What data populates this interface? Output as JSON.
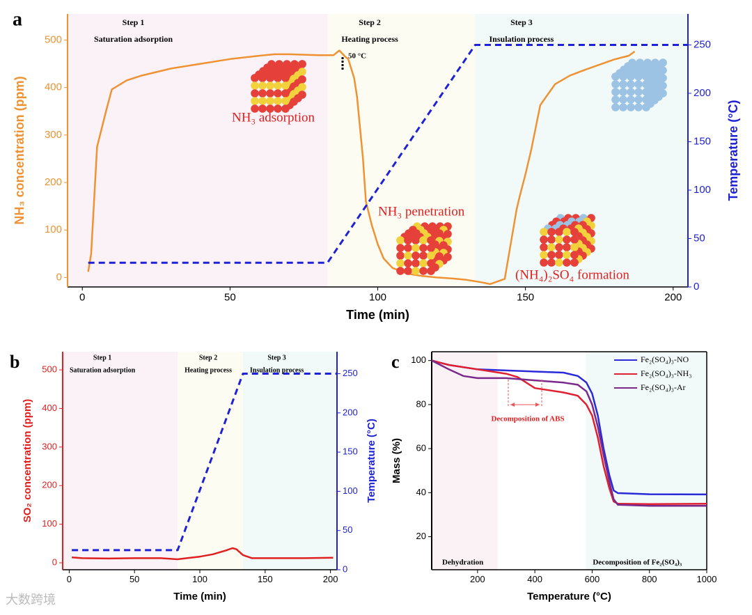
{
  "chart_data": [
    {
      "type": "line",
      "panel": "a",
      "xlabel": "Time (min)",
      "ylabel": "NH₃ concentration (ppm)",
      "y2label": "Temperature (°C)",
      "xlim": [
        -5,
        205
      ],
      "ylim": [
        -20,
        555
      ],
      "y2lim": [
        0,
        282
      ],
      "xticks": [
        0,
        50,
        100,
        150,
        200
      ],
      "yticks": [
        0,
        100,
        200,
        300,
        400,
        500
      ],
      "y2ticks": [
        0,
        50,
        100,
        150,
        200,
        250
      ],
      "ycolor": "#ee9233",
      "y2color": "#1f22d4",
      "regions": [
        {
          "label": "Step 1",
          "sublabel": "Saturation adsorption",
          "x": [
            -5,
            83
          ],
          "color": "#fbf2f8"
        },
        {
          "label": "Step 2",
          "sublabel": "Heating process",
          "x": [
            83,
            133
          ],
          "color": "#fdfcf3"
        },
        {
          "label": "Step 3",
          "sublabel": "Insulation process",
          "x": [
            133,
            205
          ],
          "color": "#f1faf9"
        }
      ],
      "annotations": [
        "50 °C",
        "NH₃ adsorption",
        "NH₃ penetration",
        "(NH₄)₂SO₄ formation"
      ],
      "series": [
        {
          "name": "NH3",
          "color": "#ee9233",
          "line_style": "solid",
          "x": [
            2,
            3,
            5,
            6,
            8,
            10,
            15,
            20,
            30,
            40,
            50,
            60,
            65,
            70,
            80,
            85,
            87,
            89,
            90,
            92,
            93,
            95,
            96,
            98,
            100,
            102,
            105,
            110,
            115,
            120,
            125,
            130,
            135,
            138,
            143,
            145,
            147,
            148,
            150,
            152,
            155,
            160,
            165,
            170,
            175,
            180,
            185,
            187
          ],
          "values": [
            12,
            50,
            275,
            300,
            350,
            396,
            415,
            425,
            440,
            450,
            460,
            467,
            470,
            470,
            468,
            468,
            478,
            465,
            460,
            420,
            380,
            250,
            160,
            110,
            70,
            40,
            20,
            8,
            3,
            0,
            -2,
            -5,
            -10,
            -14,
            -3,
            70,
            143,
            170,
            217,
            270,
            363,
            407,
            425,
            437,
            448,
            459,
            467,
            476
          ]
        },
        {
          "name": "Temperature",
          "color": "#1f22d4",
          "line_style": "dashed",
          "axis": "y2",
          "x": [
            2,
            83,
            133,
            205
          ],
          "values": [
            25,
            25,
            250,
            250
          ]
        }
      ]
    },
    {
      "type": "line",
      "panel": "b",
      "xlabel": "Time (min)",
      "ylabel": "SO₂ concentration (ppm)",
      "y2label": "Temperature (°C)",
      "xlim": [
        -5,
        205
      ],
      "ylim": [
        -18,
        547
      ],
      "y2lim": [
        0,
        278
      ],
      "xticks": [
        0,
        50,
        100,
        150,
        200
      ],
      "yticks": [
        0,
        100,
        200,
        300,
        400,
        500
      ],
      "y2ticks": [
        0,
        50,
        100,
        150,
        200,
        250
      ],
      "ycolor": "#e02020",
      "y2color": "#1f22d4",
      "regions": [
        {
          "label": "Step 1",
          "sublabel": "Saturation adsorption",
          "x": [
            -5,
            83
          ],
          "color": "#fbf2f8"
        },
        {
          "label": "Step 2",
          "sublabel": "Heating process",
          "x": [
            83,
            133
          ],
          "color": "#fdfcf3"
        },
        {
          "label": "Step 3",
          "sublabel": "Insulation process",
          "x": [
            133,
            205
          ],
          "color": "#f1faf9"
        }
      ],
      "annotations": [],
      "series": [
        {
          "name": "SO2",
          "color": "#e02020",
          "line_style": "solid",
          "x": [
            2,
            10,
            30,
            50,
            70,
            83,
            90,
            100,
            110,
            120,
            125,
            128,
            133,
            140,
            160,
            180,
            202
          ],
          "values": [
            14,
            12,
            11,
            12,
            12,
            9,
            12,
            16,
            22,
            32,
            38,
            35,
            20,
            12,
            12,
            12,
            13
          ]
        },
        {
          "name": "Temperature",
          "color": "#1f22d4",
          "line_style": "dashed",
          "axis": "y2",
          "x": [
            2,
            83,
            133,
            205
          ],
          "values": [
            25,
            25,
            250,
            250
          ]
        }
      ]
    },
    {
      "type": "line",
      "panel": "c",
      "xlabel": "Temperature (°C)",
      "ylabel": "Mass (%)",
      "xlim": [
        40,
        1000
      ],
      "ylim": [
        5,
        104
      ],
      "xticks": [
        200,
        400,
        600,
        800,
        1000
      ],
      "yticks": [
        20,
        40,
        60,
        80,
        100
      ],
      "ycolor": "#000000",
      "legend": "upper right",
      "regions": [
        {
          "label": "Dehydration",
          "x": [
            40,
            270
          ],
          "color": "#fbf2f6"
        },
        {
          "label": "Decomposition of Fe₂(SO₄)₃",
          "x": [
            578,
            1000
          ],
          "color": "#f1faf9"
        }
      ],
      "annotations": [
        "Decomposition of ABS"
      ],
      "series": [
        {
          "name": "Fe₂(SO₄)₃-NO",
          "color": "#2a2ad8",
          "line_style": "solid",
          "x": [
            40,
            100,
            200,
            300,
            400,
            500,
            550,
            580,
            600,
            620,
            640,
            660,
            675,
            690,
            800,
            1000
          ],
          "values": [
            100,
            98,
            96,
            95.5,
            95,
            94.5,
            93,
            90,
            85,
            75,
            60,
            48,
            41,
            39.8,
            39.3,
            39.2
          ]
        },
        {
          "name": "Fe₂(SO₄)₃-NH₃",
          "color": "#e02030",
          "line_style": "solid",
          "x": [
            40,
            100,
            200,
            300,
            340,
            370,
            400,
            450,
            500,
            550,
            580,
            600,
            620,
            640,
            660,
            675,
            690,
            800,
            1000
          ],
          "values": [
            100,
            98,
            96,
            94,
            92.5,
            90,
            87.5,
            86.5,
            85.5,
            84,
            80,
            75,
            65,
            52,
            42,
            36,
            35,
            34.8,
            35
          ]
        },
        {
          "name": "Fe₂(SO₄)₃-Ar",
          "color": "#7a2a8a",
          "line_style": "solid",
          "x": [
            40,
            100,
            150,
            200,
            300,
            400,
            500,
            550,
            580,
            600,
            620,
            640,
            660,
            675,
            690,
            800,
            1000
          ],
          "values": [
            100,
            96,
            93,
            92,
            92,
            91,
            90,
            89,
            86,
            80,
            70,
            57,
            45,
            37,
            34.5,
            34,
            34
          ]
        }
      ]
    }
  ],
  "watermark": "大数跨境"
}
